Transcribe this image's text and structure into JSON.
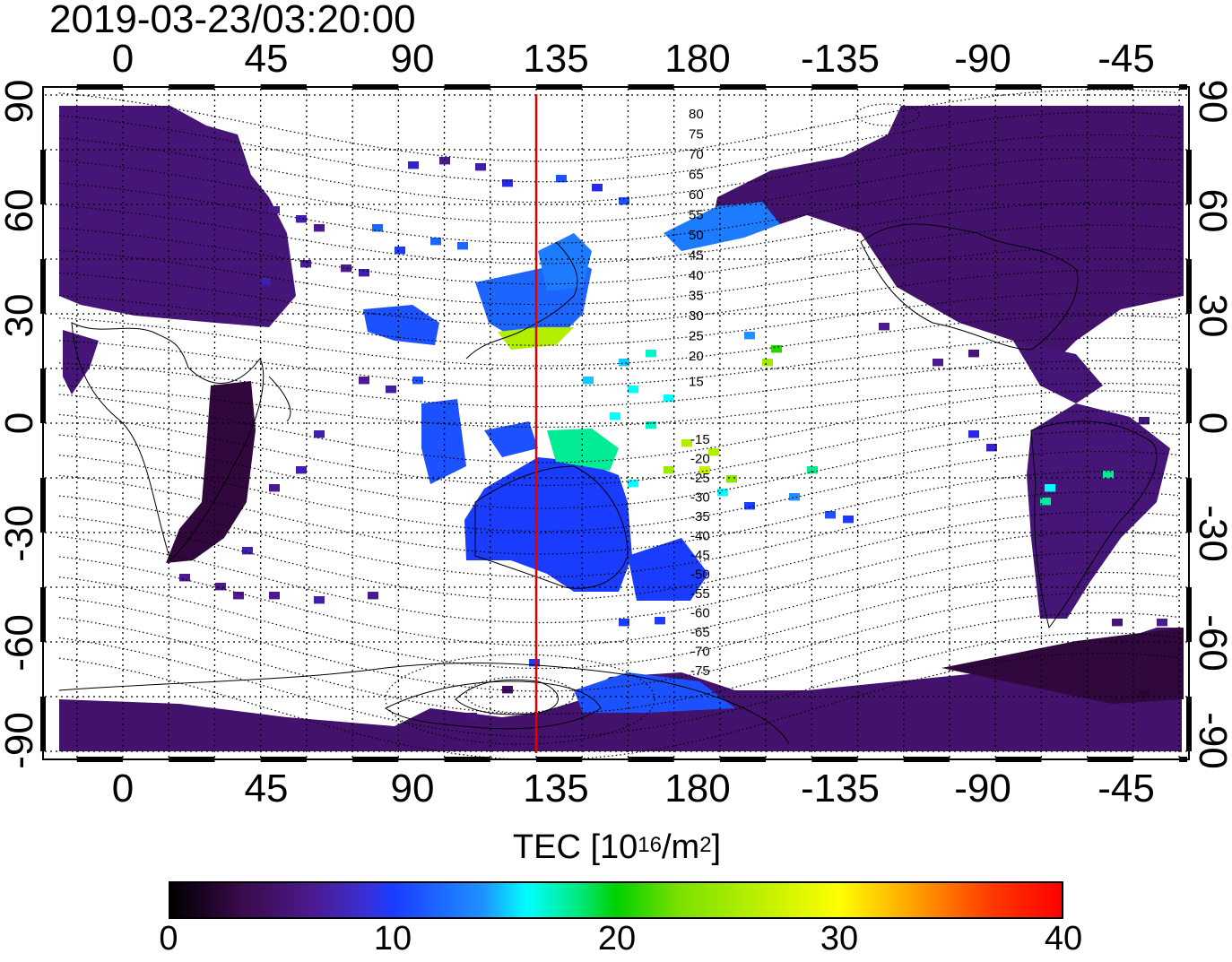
{
  "timestamp": "2019-03-23/03:20:00",
  "axes": {
    "lon_ticks": [
      "0",
      "45",
      "90",
      "135",
      "180",
      "-135",
      "-90",
      "-45"
    ],
    "lat_ticks": [
      "90",
      "60",
      "30",
      "0",
      "-30",
      "-60",
      "-90"
    ]
  },
  "colorbar": {
    "title_prefix": "TEC  [10",
    "title_exp": "16",
    "title_unit": "/m",
    "title_unit_exp": "2",
    "title_close": "]",
    "ticks": [
      "0",
      "10",
      "20",
      "30",
      "40"
    ],
    "range": [
      0,
      40
    ]
  },
  "contour_labels": {
    "north": [
      "80",
      "75",
      "70",
      "65",
      "60",
      "55",
      "50",
      "45",
      "40",
      "35",
      "30",
      "25",
      "20",
      "15"
    ],
    "south": [
      "-15",
      "-20",
      "-25",
      "-30",
      "-35",
      "-40",
      "-45",
      "-50",
      "-55",
      "-60",
      "-65",
      "-70",
      "-75"
    ]
  },
  "map": {
    "marker_longitude": 135,
    "marker_color": "#e00000",
    "land_color": "#4a1a7a",
    "ocean_color": "#ffffff",
    "grid_style": "dotted",
    "projection": "equirectangular",
    "lon_range": [
      -20,
      340
    ],
    "lat_range": [
      -90,
      90
    ]
  }
}
